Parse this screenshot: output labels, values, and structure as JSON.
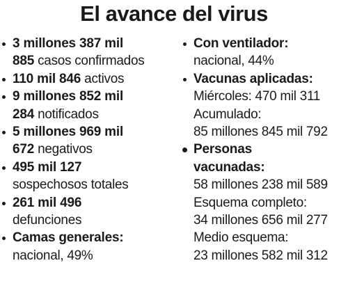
{
  "title": "El avance del virus",
  "left": {
    "items": [
      {
        "lines": [
          {
            "bold": "3 millones 387 mil"
          },
          {
            "bold": "885",
            "text": "casos confirmados"
          }
        ]
      },
      {
        "lines": [
          {
            "bold": "110 mil 846",
            "text": "activos"
          }
        ]
      },
      {
        "lines": [
          {
            "bold": "9 millones 852 mil"
          },
          {
            "bold": "284",
            "text": "notificados"
          }
        ]
      },
      {
        "lines": [
          {
            "bold": "5 millones 969 mil"
          },
          {
            "bold": "672",
            "text": "negativos"
          }
        ]
      },
      {
        "lines": [
          {
            "bold": "495 mil 127"
          },
          {
            "text": "sospechosos totales"
          }
        ]
      },
      {
        "lines": [
          {
            "bold": "261 mil 496"
          },
          {
            "text": "defunciones"
          }
        ]
      },
      {
        "lines": [
          {
            "bold": "Camas generales:"
          },
          {
            "text": "nacional, 49%"
          }
        ]
      }
    ]
  },
  "right": {
    "items": [
      {
        "lines": [
          {
            "bold": "Con ventilador:"
          },
          {
            "text": "nacional, 44%"
          }
        ]
      },
      {
        "lines": [
          {
            "bold": "Vacunas aplicadas:"
          },
          {
            "text": "Miércoles: 470 mil 311"
          },
          {
            "text": "Acumulado:"
          },
          {
            "text": "85 millones 845 mil 792"
          }
        ]
      },
      {
        "lines": [
          {
            "bold": "Personas"
          },
          {
            "bold": "vacunadas:"
          },
          {
            "text": "58 millones 238 mil 589"
          },
          {
            "text": "Esquema completo:"
          },
          {
            "text": "34 millones 656 mil 277"
          },
          {
            "text": "Medio esquema:"
          },
          {
            "text": "23 millones 582 mil 312"
          }
        ]
      }
    ]
  }
}
